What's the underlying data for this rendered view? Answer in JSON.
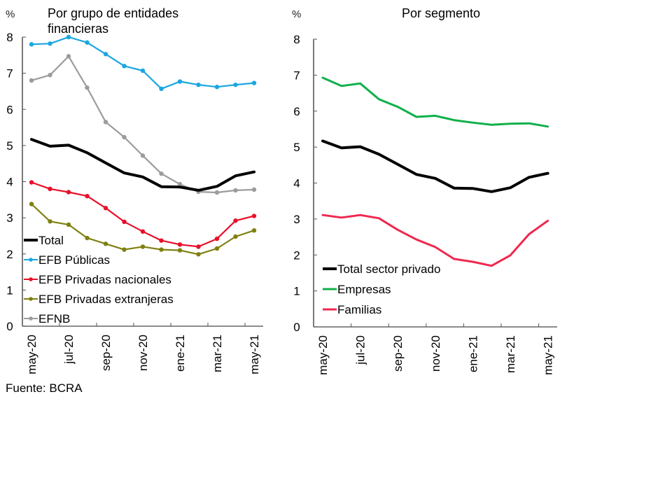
{
  "source": "Fuente: BCRA",
  "chart_data": [
    {
      "type": "line",
      "id": "left",
      "title": "Por grupo de entidades financieras",
      "title_lines": [
        "Por grupo de entidades",
        "financieras"
      ],
      "ylabel": "%",
      "xlabel": "",
      "ylim": [
        0,
        8
      ],
      "yticks": [
        0,
        1,
        2,
        3,
        4,
        5,
        6,
        7,
        8
      ],
      "x": [
        "may-20",
        "jun-20",
        "jul-20",
        "ago-20",
        "sep-20",
        "oct-20",
        "nov-20",
        "dic-20",
        "ene-21",
        "feb-21",
        "mar-21",
        "abr-21",
        "may-21"
      ],
      "xtick_labels": [
        "may-20",
        "jul-20",
        "sep-20",
        "nov-20",
        "ene-21",
        "mar-21",
        "may-21"
      ],
      "grid": false,
      "legend_position": "bottom-left",
      "series": [
        {
          "name": "Total",
          "color": "#000000",
          "markers": false,
          "width": "thick",
          "values": [
            5.17,
            4.98,
            5.01,
            4.8,
            4.52,
            4.24,
            4.13,
            3.86,
            3.85,
            3.76,
            3.87,
            4.16,
            4.27
          ]
        },
        {
          "name": "EFB Públicas",
          "color": "#1aa7e0",
          "markers": true,
          "width": "normal",
          "values": [
            7.8,
            7.82,
            8.0,
            7.85,
            7.53,
            7.2,
            7.07,
            6.57,
            6.77,
            6.68,
            6.62,
            6.68,
            6.73
          ]
        },
        {
          "name": "EFB Privadas nacionales",
          "color": "#e8102a",
          "markers": true,
          "width": "normal",
          "values": [
            3.98,
            3.8,
            3.71,
            3.6,
            3.27,
            2.89,
            2.62,
            2.37,
            2.26,
            2.2,
            2.42,
            2.92,
            3.05
          ]
        },
        {
          "name": "EFB Privadas extranjeras",
          "color": "#7f8010",
          "markers": true,
          "width": "normal",
          "values": [
            3.38,
            2.9,
            2.81,
            2.44,
            2.28,
            2.12,
            2.2,
            2.12,
            2.1,
            1.99,
            2.15,
            2.48,
            2.65
          ]
        },
        {
          "name": "EFNB",
          "color": "#9c9c9c",
          "markers": true,
          "width": "normal",
          "values": [
            6.8,
            6.95,
            7.47,
            6.6,
            5.65,
            5.23,
            4.72,
            4.22,
            3.93,
            3.72,
            3.7,
            3.76,
            3.78
          ]
        }
      ]
    },
    {
      "type": "line",
      "id": "right",
      "title": "Por segmento",
      "title_lines": [
        "Por segmento"
      ],
      "ylabel": "%",
      "xlabel": "",
      "ylim": [
        0,
        8
      ],
      "yticks": [
        0,
        1,
        2,
        3,
        4,
        5,
        6,
        7,
        8
      ],
      "x": [
        "may-20",
        "jun-20",
        "jul-20",
        "ago-20",
        "sep-20",
        "oct-20",
        "nov-20",
        "dic-20",
        "ene-21",
        "feb-21",
        "mar-21",
        "abr-21",
        "may-21"
      ],
      "xtick_labels": [
        "may-20",
        "jul-20",
        "sep-20",
        "nov-20",
        "ene-21",
        "mar-21",
        "may-21"
      ],
      "grid": false,
      "legend_position": "bottom-left",
      "series": [
        {
          "name": "Total sector privado",
          "color": "#000000",
          "markers": false,
          "width": "thick",
          "values": [
            5.17,
            4.98,
            5.01,
            4.8,
            4.52,
            4.24,
            4.13,
            3.86,
            3.85,
            3.76,
            3.87,
            4.16,
            4.27
          ]
        },
        {
          "name": "Empresas",
          "color": "#10b04a",
          "markers": false,
          "width": "medium",
          "values": [
            6.93,
            6.7,
            6.77,
            6.33,
            6.12,
            5.84,
            5.87,
            5.75,
            5.68,
            5.62,
            5.65,
            5.66,
            5.57
          ]
        },
        {
          "name": "Familias",
          "color": "#f0284f",
          "markers": false,
          "width": "medium",
          "values": [
            3.11,
            3.04,
            3.11,
            3.02,
            2.7,
            2.43,
            2.22,
            1.89,
            1.81,
            1.7,
            1.99,
            2.58,
            2.95
          ]
        }
      ]
    }
  ]
}
